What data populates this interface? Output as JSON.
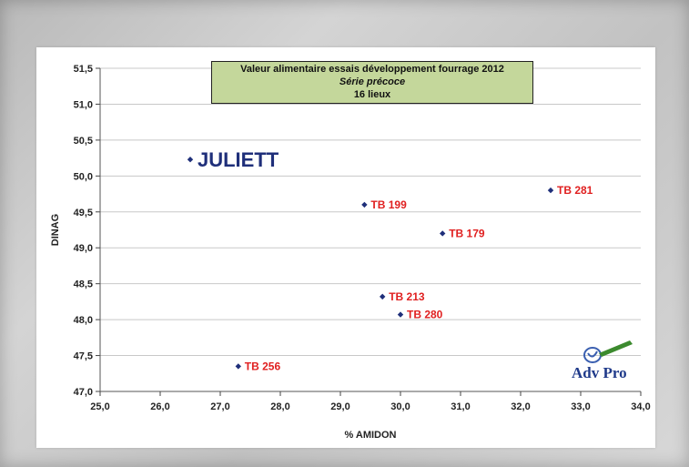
{
  "chart_data": {
    "type": "scatter",
    "title": "Valeur alimentaire essais développement fourrage 2012",
    "subtitle": "Série précoce",
    "subtitle2": "16 lieux",
    "xlabel": "% AMIDON",
    "ylabel": "DINAG",
    "xlim": [
      25.0,
      34.0
    ],
    "ylim": [
      47.0,
      51.5
    ],
    "x_ticks": [
      "25,0",
      "26,0",
      "27,0",
      "28,0",
      "29,0",
      "30,0",
      "31,0",
      "32,0",
      "33,0",
      "34,0"
    ],
    "y_ticks": [
      "47,0",
      "47,5",
      "48,0",
      "48,5",
      "49,0",
      "49,5",
      "50,0",
      "50,5",
      "51,0",
      "51,5"
    ],
    "grid": "horizontal",
    "points": [
      {
        "label": "JULIETT",
        "x": 26.5,
        "y": 50.23
      },
      {
        "label": "TB 199",
        "x": 29.4,
        "y": 49.6
      },
      {
        "label": "TB 179",
        "x": 30.7,
        "y": 49.2
      },
      {
        "label": "TB 281",
        "x": 32.5,
        "y": 49.8
      },
      {
        "label": "TB 213",
        "x": 29.7,
        "y": 48.32
      },
      {
        "label": "TB 280",
        "x": 30.0,
        "y": 48.07
      },
      {
        "label": "TB 256",
        "x": 27.3,
        "y": 47.35
      }
    ],
    "colors": {
      "marker": "#1f2f7a",
      "label": "#e02020",
      "brand": "#1f2f7a",
      "title_bg": "#c4d79b",
      "grid": "#c8c8c8"
    }
  },
  "logo": {
    "text": "Adv Pro"
  }
}
